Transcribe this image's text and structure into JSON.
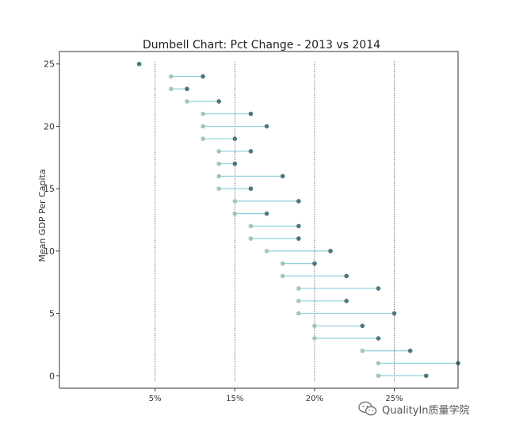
{
  "chart_data": {
    "type": "dumbbell",
    "title": "Dumbell Chart: Pct Change - 2013 vs 2014",
    "ylabel": "Mean GDP Per Capita",
    "xlabel": "",
    "x_ticks": [
      {
        "label": "5%",
        "pos": 12
      },
      {
        "label": "15%",
        "pos": 17
      },
      {
        "label": "20%",
        "pos": 22
      },
      {
        "label": "25%",
        "pos": 27
      }
    ],
    "y_ticks": [
      0,
      5,
      10,
      15,
      20,
      25
    ],
    "xlim": [
      6,
      31
    ],
    "ylim": [
      -1,
      26
    ],
    "vertical_lines": [
      12,
      17,
      22,
      27
    ],
    "rows": [
      {
        "y": 0,
        "start": 26,
        "end": 29
      },
      {
        "y": 1,
        "start": 26,
        "end": 31
      },
      {
        "y": 2,
        "start": 25,
        "end": 28
      },
      {
        "y": 3,
        "start": 22,
        "end": 26
      },
      {
        "y": 4,
        "start": 22,
        "end": 25
      },
      {
        "y": 5,
        "start": 21,
        "end": 27
      },
      {
        "y": 6,
        "start": 21,
        "end": 24
      },
      {
        "y": 7,
        "start": 21,
        "end": 26
      },
      {
        "y": 8,
        "start": 20,
        "end": 24
      },
      {
        "y": 9,
        "start": 20,
        "end": 22
      },
      {
        "y": 10,
        "start": 19,
        "end": 23
      },
      {
        "y": 11,
        "start": 18,
        "end": 21
      },
      {
        "y": 12,
        "start": 18,
        "end": 21
      },
      {
        "y": 13,
        "start": 17,
        "end": 19
      },
      {
        "y": 14,
        "start": 17,
        "end": 21
      },
      {
        "y": 15,
        "start": 16,
        "end": 18
      },
      {
        "y": 16,
        "start": 16,
        "end": 20
      },
      {
        "y": 17,
        "start": 16,
        "end": 17
      },
      {
        "y": 18,
        "start": 16,
        "end": 18
      },
      {
        "y": 19,
        "start": 15,
        "end": 17
      },
      {
        "y": 20,
        "start": 15,
        "end": 19
      },
      {
        "y": 21,
        "start": 15,
        "end": 18
      },
      {
        "y": 22,
        "start": 14,
        "end": 16
      },
      {
        "y": 23,
        "start": 13,
        "end": 14
      },
      {
        "y": 24,
        "start": 13,
        "end": 15
      },
      {
        "y": 25,
        "start": 11,
        "end": 11
      }
    ],
    "grid": false,
    "colors": {
      "start_point": "#a3c4bc",
      "end_point": "#4d7a6e",
      "line": "#8fcfe0",
      "vline": "#555555",
      "frame": "#333333"
    }
  },
  "watermark": {
    "text": "QualityIn质量学院",
    "icon": "wechat-icon"
  }
}
